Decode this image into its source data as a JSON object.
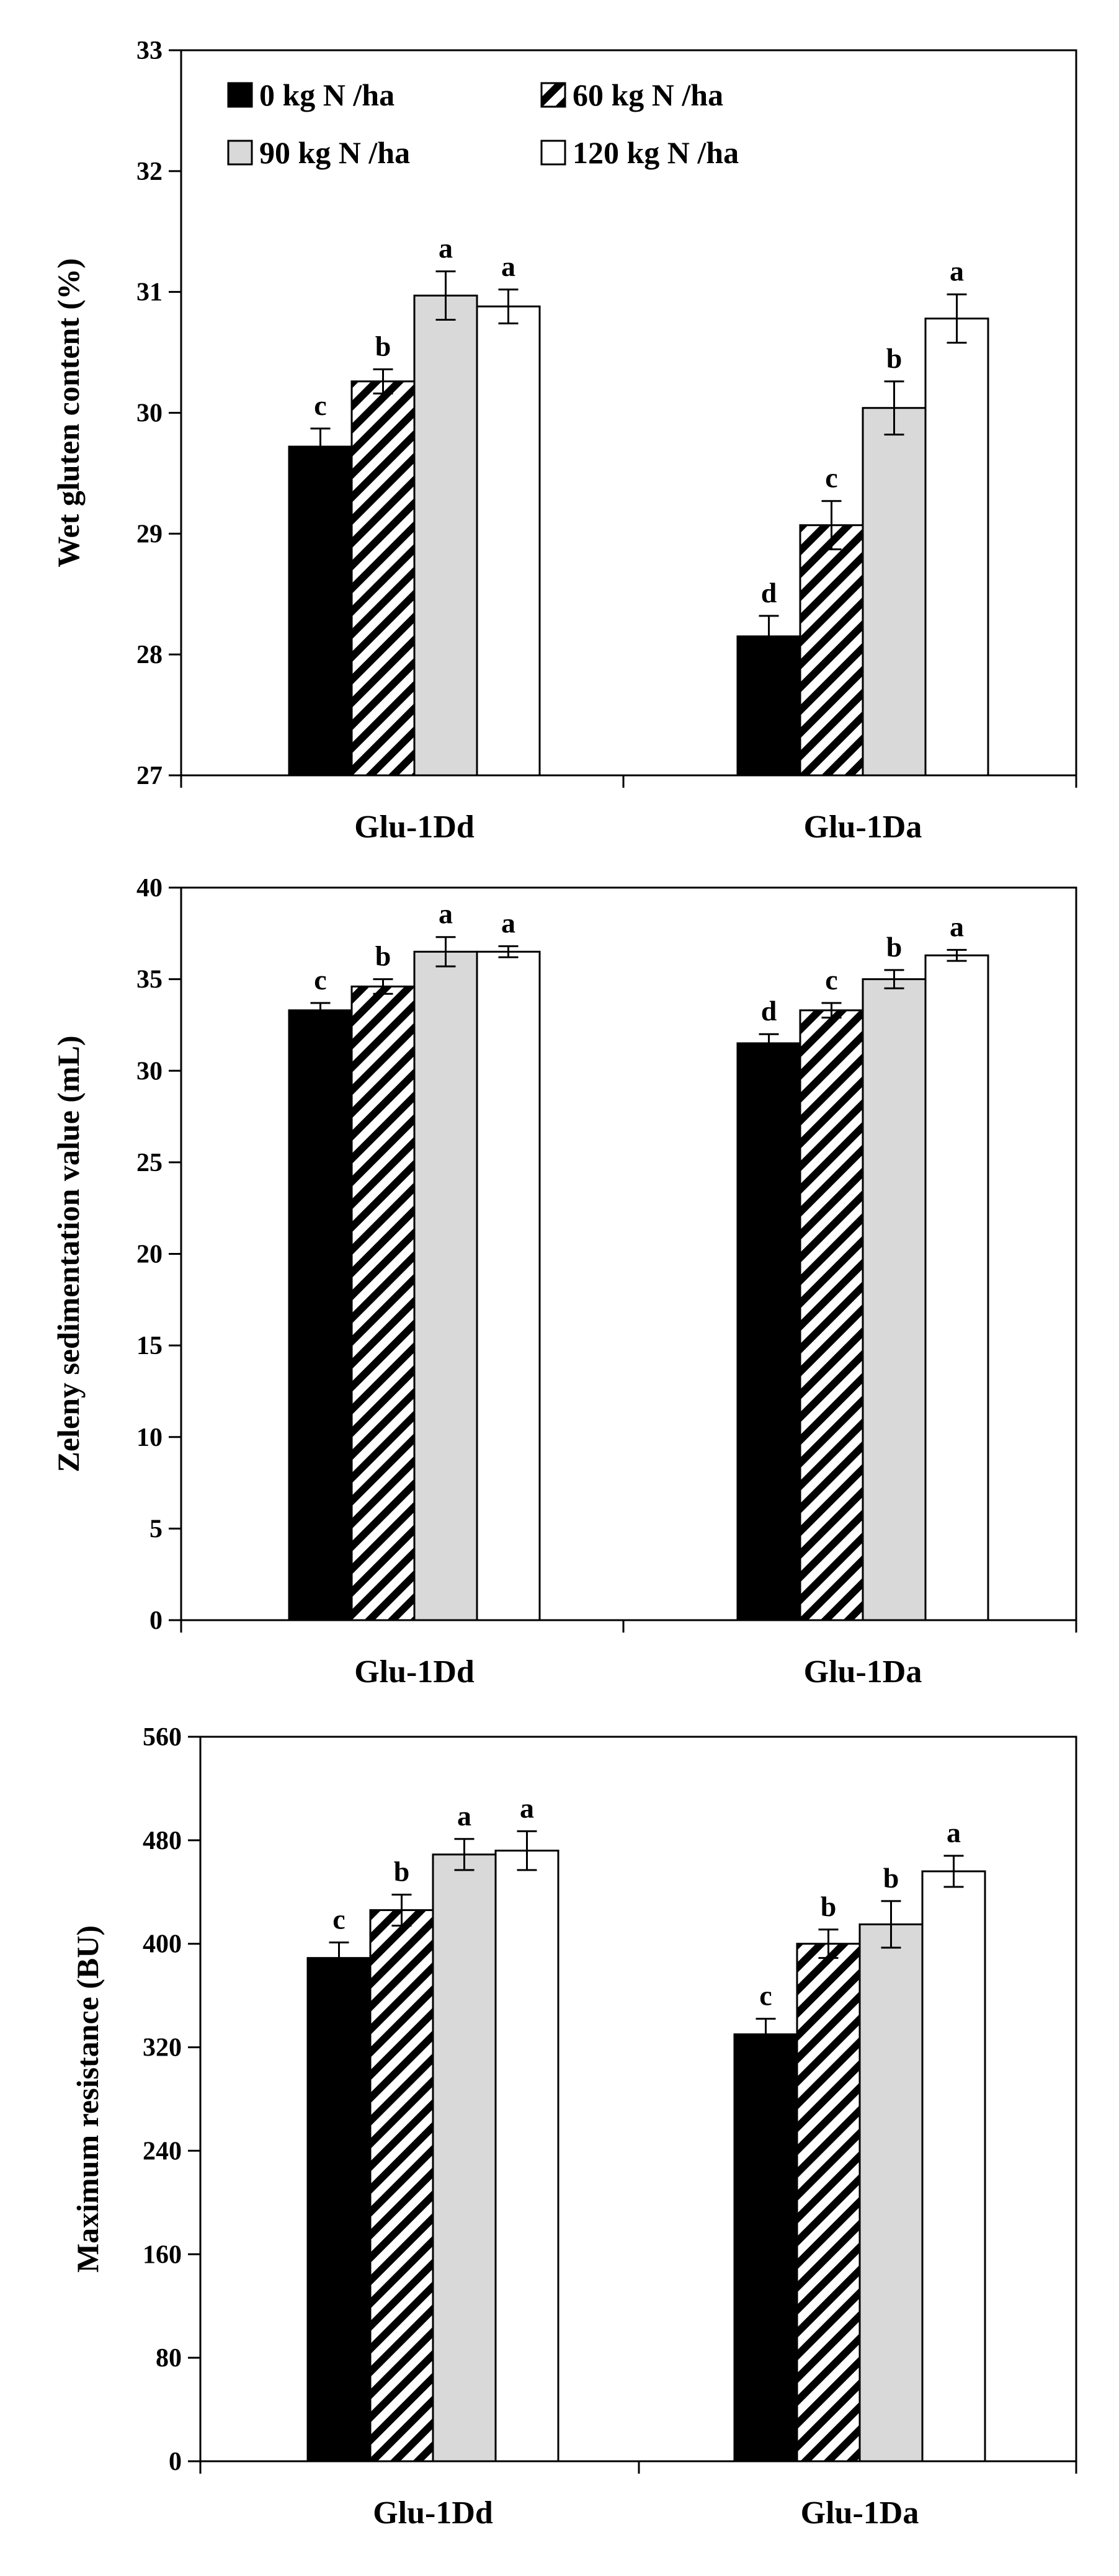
{
  "chart_data": [
    {
      "type": "bar",
      "ylabel": "Wet gluten content (%)",
      "ylim": [
        27,
        33
      ],
      "yticks": [
        27,
        28,
        29,
        30,
        31,
        32,
        33
      ],
      "categories": [
        "Glu-1Dd",
        "Glu-1Da"
      ],
      "legend": {
        "placement": "top-left"
      },
      "series": [
        {
          "name": "0 kg N /ha",
          "fill": "solid",
          "values": [
            29.72,
            28.15
          ],
          "errors": [
            0.15,
            0.17
          ],
          "letters": [
            "c",
            "d"
          ]
        },
        {
          "name": "60 kg N /ha",
          "fill": "hatched",
          "values": [
            30.26,
            29.07
          ],
          "errors": [
            0.1,
            0.2
          ],
          "letters": [
            "b",
            "c"
          ]
        },
        {
          "name": "90 kg N /ha",
          "fill": "light",
          "values": [
            30.97,
            30.04
          ],
          "errors": [
            0.2,
            0.22
          ],
          "letters": [
            "a",
            "b"
          ]
        },
        {
          "name": "120 kg N /ha",
          "fill": "white",
          "values": [
            30.88,
            30.78
          ],
          "errors": [
            0.14,
            0.2
          ],
          "letters": [
            "a",
            "a"
          ]
        }
      ]
    },
    {
      "type": "bar",
      "ylabel": "Zeleny sedimentation value (mL)",
      "ylim": [
        0,
        40
      ],
      "yticks": [
        0,
        5,
        10,
        15,
        20,
        25,
        30,
        35,
        40
      ],
      "categories": [
        "Glu-1Dd",
        "Glu-1Da"
      ],
      "series": [
        {
          "name": "0 kg N /ha",
          "fill": "solid",
          "values": [
            33.3,
            31.5
          ],
          "errors": [
            0.4,
            0.5
          ],
          "letters": [
            "c",
            "d"
          ]
        },
        {
          "name": "60 kg N /ha",
          "fill": "hatched",
          "values": [
            34.6,
            33.3
          ],
          "errors": [
            0.4,
            0.4
          ],
          "letters": [
            "b",
            "c"
          ]
        },
        {
          "name": "90 kg N /ha",
          "fill": "light",
          "values": [
            36.5,
            35.0
          ],
          "errors": [
            0.8,
            0.5
          ],
          "letters": [
            "a",
            "b"
          ]
        },
        {
          "name": "120 kg N /ha",
          "fill": "white",
          "values": [
            36.5,
            36.3
          ],
          "errors": [
            0.3,
            0.3
          ],
          "letters": [
            "a",
            "a"
          ]
        }
      ]
    },
    {
      "type": "bar",
      "ylabel": "Maximum resistance (BU)",
      "ylim": [
        0,
        560
      ],
      "yticks": [
        0,
        80,
        160,
        240,
        320,
        400,
        480,
        560
      ],
      "categories": [
        "Glu-1Dd",
        "Glu-1Da"
      ],
      "series": [
        {
          "name": "0 kg N /ha",
          "fill": "solid",
          "values": [
            389,
            330
          ],
          "errors": [
            12,
            12
          ],
          "letters": [
            "c",
            "c"
          ]
        },
        {
          "name": "60 kg N /ha",
          "fill": "hatched",
          "values": [
            426,
            400
          ],
          "errors": [
            12,
            11
          ],
          "letters": [
            "b",
            "b"
          ]
        },
        {
          "name": "90 kg N /ha",
          "fill": "light",
          "values": [
            469,
            415
          ],
          "errors": [
            12,
            18
          ],
          "letters": [
            "a",
            "b"
          ]
        },
        {
          "name": "120 kg N /ha",
          "fill": "white",
          "values": [
            472,
            456
          ],
          "errors": [
            15,
            12
          ],
          "letters": [
            "a",
            "a"
          ]
        }
      ]
    }
  ]
}
